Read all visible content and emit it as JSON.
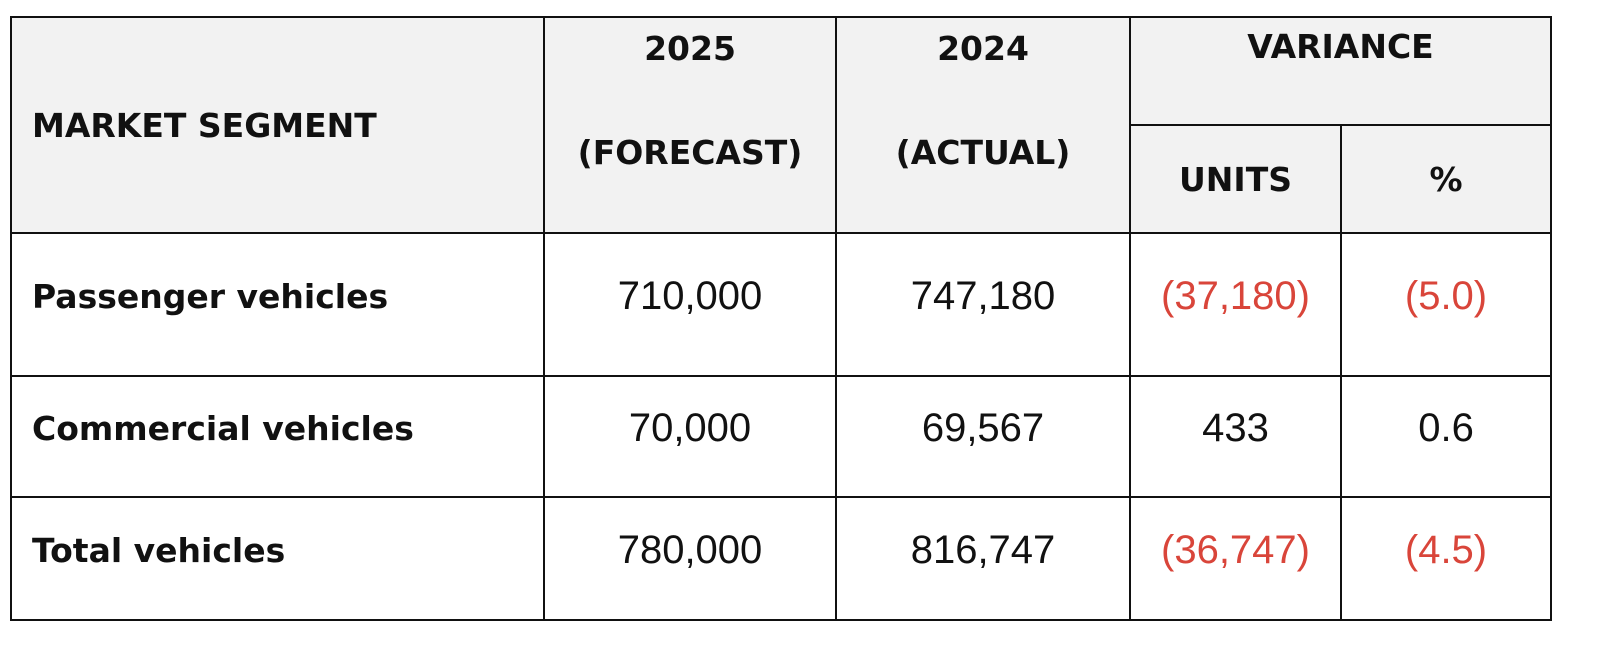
{
  "header": {
    "market_segment": "MARKET SEGMENT",
    "col_2025_year": "2025",
    "col_2025_note": "(FORECAST)",
    "col_2024_year": "2024",
    "col_2024_note": "(ACTUAL)",
    "variance": "VARIANCE",
    "units": "UNITS",
    "percent": "%"
  },
  "rows": [
    {
      "segment": "Passenger vehicles",
      "forecast_2025": "710,000",
      "actual_2024": "747,180",
      "variance_units": "(37,180)",
      "variance_pct": "(5.0)"
    },
    {
      "segment": "Commercial vehicles",
      "forecast_2025": "70,000",
      "actual_2024": "69,567",
      "variance_units": "433",
      "variance_pct": "0.6"
    },
    {
      "segment": "Total vehicles",
      "forecast_2025": "780,000",
      "actual_2024": "816,747",
      "variance_units": "(36,747)",
      "variance_pct": "(4.5)"
    }
  ],
  "colors": {
    "negative": "#d9453a",
    "header_background": "#f2f2f2",
    "text": "#111111",
    "border": "#111111"
  }
}
